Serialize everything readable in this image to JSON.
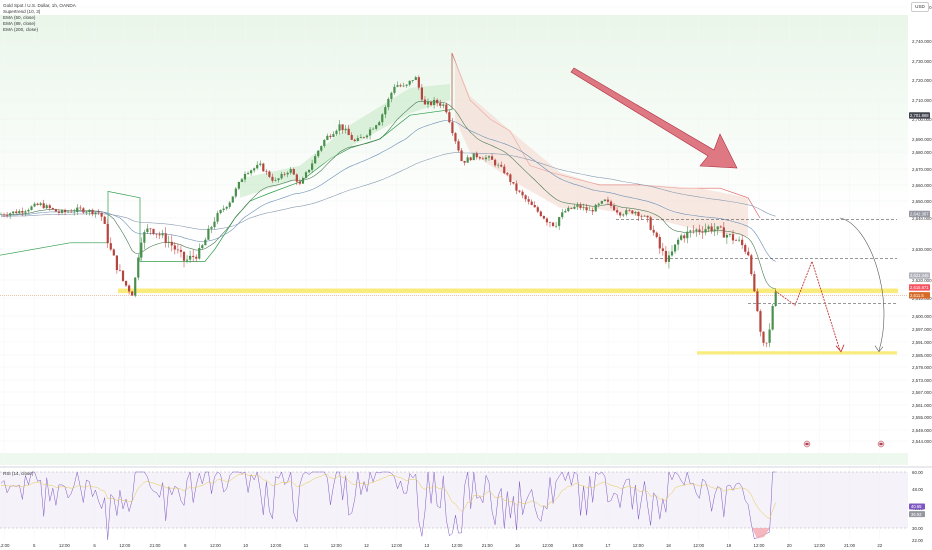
{
  "header": {
    "symbol_title": "Gold Spot / U.S. Dollar, 1h, OANDA",
    "indicators": [
      "Supertrend (10, 3)",
      "EMA (50, close)",
      "EMA (89, close)",
      "EMA (200, close)"
    ],
    "currency": "USD",
    "rsi_label": "RSI (14, close)"
  },
  "chart_data": [
    {
      "type": "candlestick",
      "symbol": "XAUUSD",
      "timeframe": "1h",
      "y_ticks": [
        "2,752.000",
        "2,740.000",
        "2,730.000",
        "2,720.000",
        "2,710.000",
        "2,700.000",
        "2,690.000",
        "2,680.000",
        "2,670.000",
        "2,660.000",
        "2,650.000",
        "2,640.000",
        "2,630.000",
        "2,620.000",
        "2,610.000",
        "2,600.000",
        "2,597.000",
        "2,591.000",
        "2,585.000",
        "2,579.000",
        "2,573.000",
        "2,567.000",
        "2,561.000",
        "2,555.000",
        "2,549.000",
        "2,544.000"
      ],
      "y_tick_values": [
        2752,
        2740,
        2730,
        2720,
        2710,
        2700,
        2690,
        2680,
        2670,
        2660,
        2650,
        2640,
        2630,
        2620,
        2610,
        2600,
        2597,
        2591,
        2585,
        2579,
        2573,
        2567,
        2561,
        2555,
        2549,
        2544
      ],
      "price_badges": [
        {
          "value": 2701.868,
          "label": "2,701.868",
          "color": "#434651"
        },
        {
          "value": 2642.387,
          "label": "2,642.387",
          "color": "#9598a1"
        },
        {
          "value": 2621.445,
          "label": "2,621.445",
          "color": "#b0b3bb"
        },
        {
          "value": 2615.871,
          "label": "2,615.871",
          "color": "#f7525f"
        },
        {
          "value": 2611.5,
          "label": "2,611.5",
          "color": "#d76a27"
        }
      ],
      "x_ticks": [
        "12:00",
        "5",
        "12:00",
        "6",
        "12:00",
        "21:00",
        "9",
        "12:00",
        "10",
        "12:00",
        "11",
        "12:00",
        "12",
        "12:00",
        "13",
        "12:00",
        "21:00",
        "16",
        "12:00",
        "19:00",
        "17",
        "12:00",
        "18",
        "12:00",
        "19",
        "12:00",
        "20",
        "12:00",
        "21:00",
        "22"
      ],
      "annotations": {
        "support_resistance": [
          2614,
          2586
        ],
        "dashed_levels": [
          2639.5,
          2627,
          2607
        ],
        "projection_path": "zigzag lower to 2,586"
      }
    },
    {
      "type": "line",
      "name": "RSI (14, close)",
      "y_ticks": [
        "60.00",
        "48.00",
        "40.00",
        "30.00",
        "22.00"
      ],
      "y_tick_values": [
        60,
        48,
        40,
        30,
        22
      ],
      "last_values": [
        {
          "label": "40.65",
          "color": "#7e57c2"
        },
        {
          "label": "36.92",
          "color": "#9598a1"
        }
      ]
    }
  ]
}
